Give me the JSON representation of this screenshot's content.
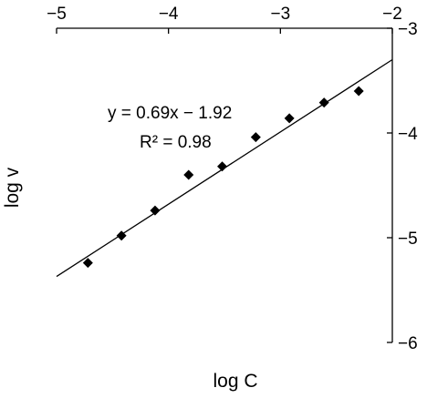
{
  "chart_data": {
    "type": "scatter",
    "xlabel": "log C",
    "ylabel": "log v",
    "xlim": [
      -5,
      -2
    ],
    "ylim": [
      -6,
      -3
    ],
    "x_axis_position": "top",
    "y_axis_position": "right",
    "x_ticks": [
      -5,
      -4,
      -3,
      -2
    ],
    "x_tick_labels": [
      "−5",
      "−4",
      "−3",
      "−2"
    ],
    "y_ticks": [
      -3,
      -4,
      -5,
      -6
    ],
    "y_tick_labels": [
      "−3",
      "−4",
      "−5",
      "−6"
    ],
    "grid": false,
    "series": [
      {
        "marker": "diamond",
        "color": "#000000",
        "points": [
          {
            "x": -4.72,
            "y": -5.24
          },
          {
            "x": -4.42,
            "y": -4.98
          },
          {
            "x": -4.12,
            "y": -4.74
          },
          {
            "x": -3.82,
            "y": -4.4
          },
          {
            "x": -3.52,
            "y": -4.32
          },
          {
            "x": -3.22,
            "y": -4.04
          },
          {
            "x": -2.92,
            "y": -3.86
          },
          {
            "x": -2.61,
            "y": -3.71
          },
          {
            "x": -2.3,
            "y": -3.6
          }
        ]
      }
    ],
    "trendline": {
      "slope": 0.69,
      "intercept": -1.92,
      "x_range": [
        -5,
        -2
      ],
      "color": "#000000"
    },
    "annotations": {
      "equation": "y = 0.69x − 1.92",
      "r_squared": "R² = 0.98"
    }
  }
}
